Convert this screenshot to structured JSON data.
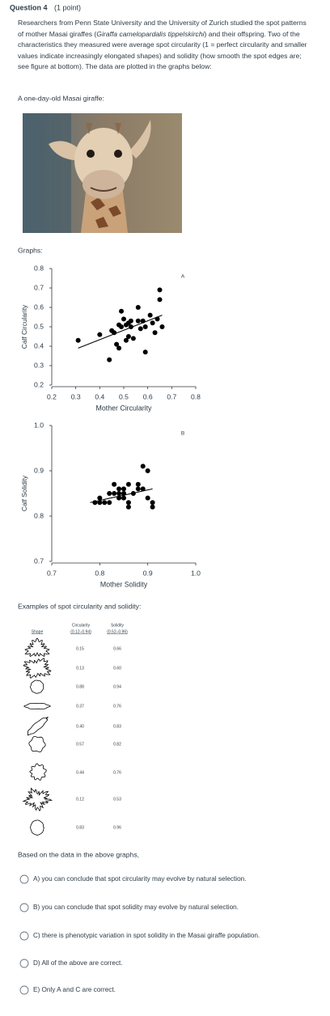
{
  "question": {
    "title": "Question 4",
    "points": "(1 point)"
  },
  "intro": {
    "before": "Researchers from Penn State University and the University of Zurich studied the spot patterns of mother Masai giraffes (",
    "species": "Giraffa camelopardalis tippelskirchi",
    "after": ") and their offspring.  Two of the characteristics they measured were average spot circularity (1 = perfect circularity and smaller values indicate increasingly elongated shapes) and solidity (how smooth the spot edges are; see figure at bottom).  The data are plotted in the graphs below:"
  },
  "photo_caption": "A one-day-old Masai giraffe:",
  "graphs_label": "Graphs:",
  "chart_data": [
    {
      "type": "scatter",
      "annotation": "A",
      "x_label": "Mother Circularity",
      "y_label": "Calf Circularity",
      "color": "#000000",
      "x": [
        0.31,
        0.4,
        0.44,
        0.45,
        0.46,
        0.47,
        0.48,
        0.48,
        0.49,
        0.49,
        0.5,
        0.51,
        0.51,
        0.52,
        0.52,
        0.53,
        0.53,
        0.54,
        0.56,
        0.56,
        0.57,
        0.58,
        0.59,
        0.59,
        0.61,
        0.62,
        0.63,
        0.64,
        0.65,
        0.65,
        0.66
      ],
      "values": [
        0.43,
        0.46,
        0.33,
        0.48,
        0.47,
        0.41,
        0.39,
        0.51,
        0.58,
        0.5,
        0.54,
        0.51,
        0.43,
        0.45,
        0.52,
        0.53,
        0.5,
        0.44,
        0.6,
        0.53,
        0.49,
        0.53,
        0.37,
        0.5,
        0.56,
        0.52,
        0.47,
        0.54,
        0.69,
        0.64,
        0.5
      ],
      "trendline": {
        "x": [
          0.31,
          0.66
        ],
        "values": [
          0.39,
          0.56
        ]
      },
      "xlim": [
        0.2,
        0.8
      ],
      "ylim": [
        0.2,
        0.8
      ],
      "xticks": [
        0.2,
        0.3,
        0.4,
        0.5,
        0.6,
        0.7,
        0.8
      ],
      "yticks": [
        0.8,
        0.7,
        0.6,
        0.5,
        0.4,
        0.3,
        0.2
      ]
    },
    {
      "type": "scatter",
      "annotation": "B",
      "x_label": "Mother Solidity",
      "y_label": "Calf Solidity",
      "color": "#000000",
      "x": [
        0.79,
        0.8,
        0.8,
        0.81,
        0.82,
        0.82,
        0.83,
        0.83,
        0.84,
        0.84,
        0.84,
        0.85,
        0.85,
        0.85,
        0.85,
        0.86,
        0.86,
        0.86,
        0.87,
        0.88,
        0.88,
        0.89,
        0.89,
        0.9,
        0.9,
        0.91,
        0.91
      ],
      "values": [
        0.83,
        0.83,
        0.84,
        0.83,
        0.85,
        0.83,
        0.85,
        0.87,
        0.84,
        0.86,
        0.85,
        0.85,
        0.86,
        0.84,
        0.85,
        0.87,
        0.83,
        0.82,
        0.85,
        0.86,
        0.87,
        0.86,
        0.91,
        0.9,
        0.84,
        0.83,
        0.82
      ],
      "trendline": {
        "x": [
          0.78,
          0.91
        ],
        "values": [
          0.83,
          0.86
        ]
      },
      "xlim": [
        0.7,
        1.0
      ],
      "ylim": [
        0.7,
        1.0
      ],
      "xticks": [
        0.7,
        0.8,
        0.9,
        {
          "value": 1,
          "label": "1.0"
        }
      ],
      "yticks": [
        {
          "value": 1,
          "label": "1.0"
        },
        0.9,
        0.8,
        0.7
      ]
    }
  ],
  "examples": {
    "title": "Examples of spot circularity and solidity:",
    "headers": {
      "shape": "Shape",
      "circularity": "Circularity",
      "circularity_range": "(0.12–0.94)",
      "solidity": "Solidity",
      "solidity_range": "(0.52–0.96)"
    },
    "rows": [
      {
        "circularity": "0.15",
        "solidity": "0.66"
      },
      {
        "circularity": "0.13",
        "solidity": "0.60"
      },
      {
        "circularity": "0.88",
        "solidity": "0.94"
      },
      {
        "circularity": "0.37",
        "solidity": "0.76"
      },
      {
        "circularity": "0.40",
        "solidity": "0.83"
      },
      {
        "circularity": "0.57",
        "solidity": "0.82"
      },
      {
        "circularity": "0.44",
        "solidity": "0.76"
      },
      {
        "circularity": "0.12",
        "solidity": "0.53"
      },
      {
        "circularity": "0.83",
        "solidity": "0.96"
      }
    ]
  },
  "prompt": "Based on the data in the above graphs,",
  "options": [
    "A) you can conclude that spot circularity may evolve by natural selection.",
    "B) you can conclude that spot solidity may evolve by natural selection.",
    "C) there is phenotypic variation in spot solidity in the Masai giraffe population.",
    "D) All of the above are correct.",
    "E) Only A and C are correct."
  ]
}
